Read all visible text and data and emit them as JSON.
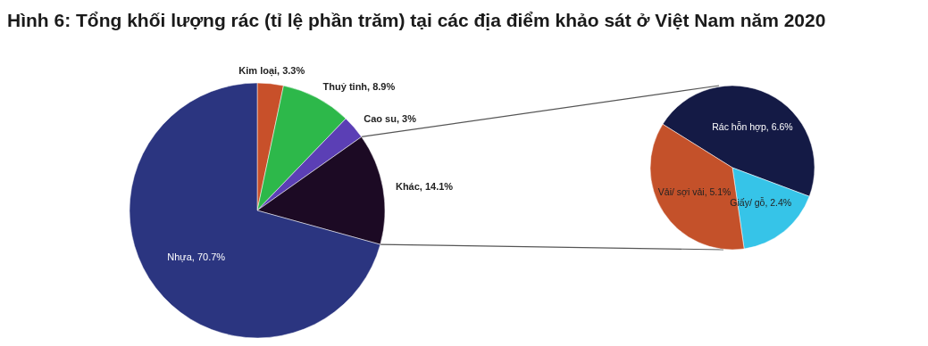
{
  "chart_data": [
    {
      "type": "pie",
      "title": "Hình 6: Tổng khối lượng rác (tỉ lệ phần trăm) tại các địa điểm khảo sát ở Việt Nam năm 2020",
      "categories": [
        "Kim loại",
        "Thuỷ tinh",
        "Cao su",
        "Khác",
        "Nhựa"
      ],
      "values": [
        3.3,
        8.9,
        3,
        14.1,
        70.7
      ],
      "value_labels": [
        "3.3%",
        "8.9%",
        "3%",
        "14.1%",
        "70.7%"
      ],
      "colors": [
        "#c8502a",
        "#2db84a",
        "#5b3fb5",
        "#1c0a24",
        "#2b3580"
      ]
    },
    {
      "type": "pie",
      "categories": [
        "Rác hỗn hợp",
        "Giấy/ gỗ",
        "Vải/ sợi vải"
      ],
      "values": [
        6.6,
        2.4,
        5.1
      ],
      "value_labels": [
        "6.6%",
        "2.4%",
        "5.1%"
      ],
      "colors": [
        "#141a45",
        "#36c4e8",
        "#c4512a"
      ]
    }
  ]
}
